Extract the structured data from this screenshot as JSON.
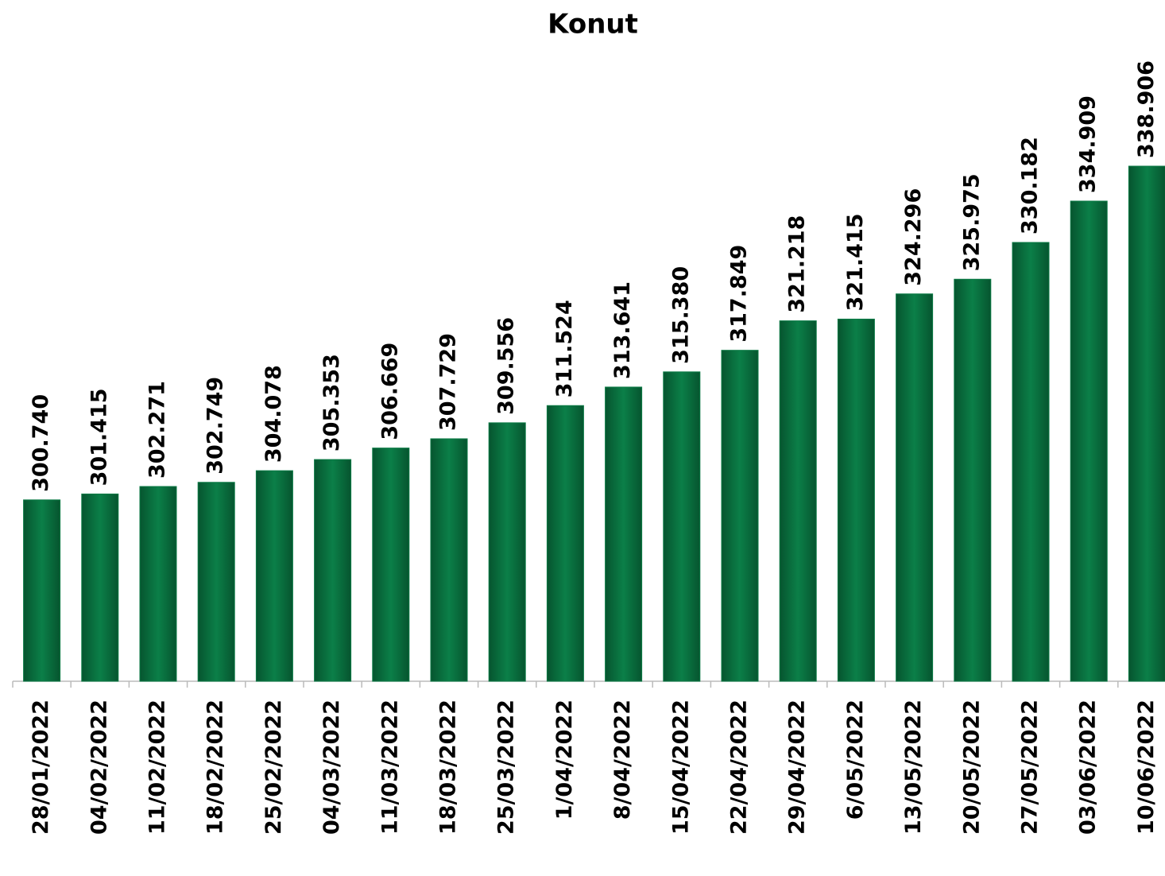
{
  "chart_data": {
    "type": "bar",
    "title": "Konut",
    "categories": [
      "28/01/2022",
      "04/02/2022",
      "11/02/2022",
      "18/02/2022",
      "25/02/2022",
      "04/03/2022",
      "11/03/2022",
      "18/03/2022",
      "25/03/2022",
      "1/04/2022",
      "8/04/2022",
      "15/04/2022",
      "22/04/2022",
      "29/04/2022",
      "6/05/2022",
      "13/05/2022",
      "20/05/2022",
      "27/05/2022",
      "03/06/2022",
      "10/06/2022"
    ],
    "values": [
      300740,
      301415,
      302271,
      302749,
      304078,
      305353,
      306669,
      307729,
      309556,
      311524,
      313641,
      315380,
      317849,
      321218,
      321415,
      324296,
      325975,
      330182,
      334909,
      338906
    ],
    "value_labels": [
      "300.740",
      "301.415",
      "302.271",
      "302.749",
      "304.078",
      "305.353",
      "306.669",
      "307.729",
      "309.556",
      "311.524",
      "313.641",
      "315.380",
      "317.849",
      "321.218",
      "321.415",
      "324.296",
      "325.975",
      "330.182",
      "334.909",
      "338.906"
    ],
    "color": "#0b7a45",
    "ylim": [
      280000,
      360000
    ]
  }
}
